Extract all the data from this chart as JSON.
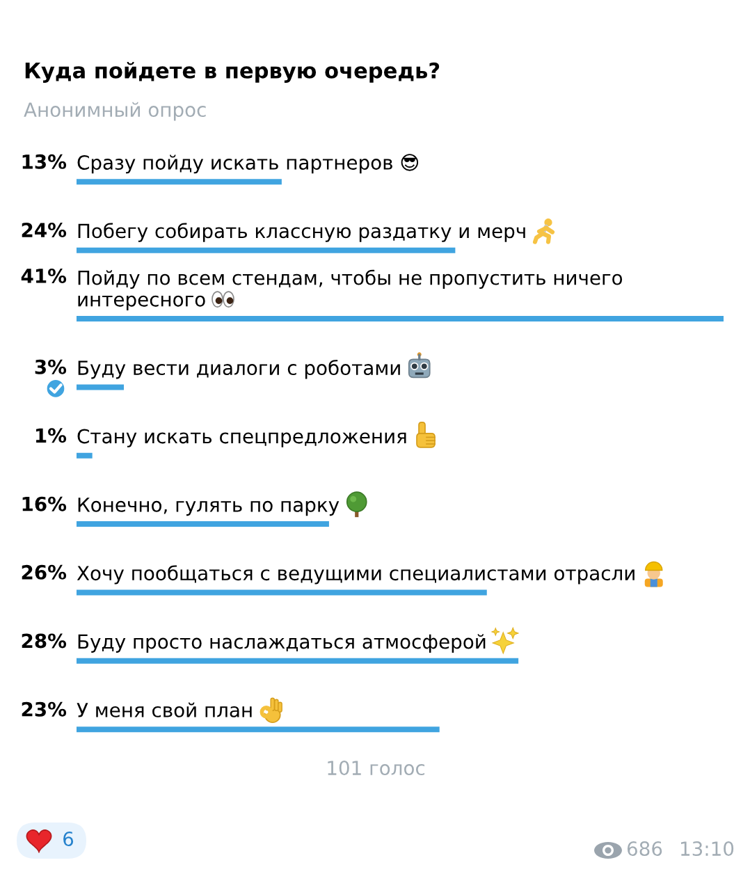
{
  "chart_data": {
    "type": "bar",
    "orientation": "horizontal",
    "title": "Куда пойдете в первую очередь?",
    "subtitle": "Анонимный опрос",
    "categories": [
      "Сразу пойду искать партнеров 😎",
      "Побегу собирать классную раздатку и мерч",
      "Пойду по всем стендам, чтобы не пропустить ничего интересного",
      "Буду вести диалоги с роботами",
      "Стану искать спецпредложения",
      "Конечно, гулять по парку",
      "Хочу пообщаться с ведущими специалистами отрасли",
      "Буду просто наслаждаться атмосферой",
      "У меня свой план"
    ],
    "values": [
      13,
      24,
      41,
      3,
      1,
      16,
      26,
      28,
      23
    ],
    "value_labels": [
      "13%",
      "24%",
      "41%",
      "3%",
      "1%",
      "16%",
      "26%",
      "28%",
      "23%"
    ],
    "color": "#40a4e0",
    "annotations": [
      "101 голос",
      "6",
      "686",
      "13:10"
    ]
  }
}
